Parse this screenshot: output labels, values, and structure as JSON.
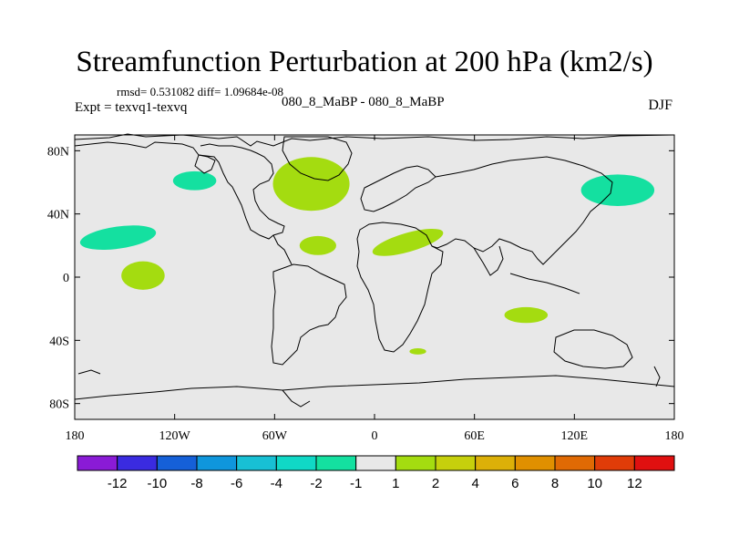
{
  "title": "Streamfunction Perturbation at 200 hPa (km2/s)",
  "stats": "rmsd= 0.531082 diff= 1.09684e-08",
  "expt": "Expt = texvq1-texvq",
  "case_label": "080_8_MaBP - 080_8_MaBP",
  "season": "DJF",
  "colors": {
    "background_field": "#e8e8e8",
    "coast": "#000000"
  },
  "chart_data": {
    "type": "heatmap",
    "title": "Streamfunction Perturbation at 200 hPa (km2/s)",
    "xlim": [
      -180,
      180
    ],
    "ylim": [
      -90,
      90
    ],
    "x_ticks": [
      {
        "value": -180,
        "label": "180"
      },
      {
        "value": -120,
        "label": "120W"
      },
      {
        "value": -60,
        "label": "60W"
      },
      {
        "value": 0,
        "label": "0"
      },
      {
        "value": 60,
        "label": "60E"
      },
      {
        "value": 120,
        "label": "120E"
      },
      {
        "value": 180,
        "label": "180"
      }
    ],
    "y_ticks": [
      {
        "value": 80,
        "label": "80N"
      },
      {
        "value": 40,
        "label": "40N"
      },
      {
        "value": 0,
        "label": "0"
      },
      {
        "value": -40,
        "label": "40S"
      },
      {
        "value": -80,
        "label": "80S"
      }
    ],
    "colorbar": {
      "colors": [
        "#8a1bd6",
        "#3a2be0",
        "#1560d8",
        "#0f96dc",
        "#18c0d4",
        "#10d8c6",
        "#14e0a0",
        "#e8e8e8",
        "#a4dc10",
        "#c6d00c",
        "#dcb008",
        "#e09000",
        "#e06a04",
        "#e03c08",
        "#e01010"
      ],
      "labels": [
        "-12",
        "-10",
        "-8",
        "-6",
        "-4",
        "-2",
        "-1",
        "1",
        "2",
        "4",
        "6",
        "8",
        "10",
        "12"
      ]
    },
    "anomalies": [
      {
        "name": "green-anomaly-n-atlantic",
        "lon": -38,
        "lat": 59,
        "rlon": 23,
        "rlat": 17,
        "color": "#a4dc10"
      },
      {
        "name": "green-anomaly-n-africa",
        "lon": 20,
        "lat": 22,
        "rlon": 22,
        "rlat": 6,
        "color": "#a4dc10",
        "rotate": -16
      },
      {
        "name": "green-anomaly-atlantic-small",
        "lon": -34,
        "lat": 20,
        "rlon": 11,
        "rlat": 6,
        "color": "#a4dc10"
      },
      {
        "name": "green-anomaly-indian-ocean",
        "lon": 91,
        "lat": -24,
        "rlon": 13,
        "rlat": 5,
        "color": "#a4dc10"
      },
      {
        "name": "green-anomaly-s-africa",
        "lon": 26,
        "lat": -47,
        "rlon": 5,
        "rlat": 2,
        "color": "#a4dc10"
      },
      {
        "name": "green-anomaly-e-pacific",
        "lon": -139,
        "lat": 1,
        "rlon": 13,
        "rlat": 9,
        "color": "#a4dc10"
      },
      {
        "name": "teal-anomaly-ne-pacific",
        "lon": -154,
        "lat": 25,
        "rlon": 23,
        "rlat": 7,
        "color": "#14e0a0",
        "rotate": -8
      },
      {
        "name": "teal-anomaly-n-america",
        "lon": -108,
        "lat": 61,
        "rlon": 13,
        "rlat": 6,
        "color": "#14e0a0"
      },
      {
        "name": "teal-anomaly-nw-pacific",
        "lon": 146,
        "lat": 55,
        "rlon": 22,
        "rlat": 10,
        "color": "#14e0a0"
      }
    ]
  }
}
